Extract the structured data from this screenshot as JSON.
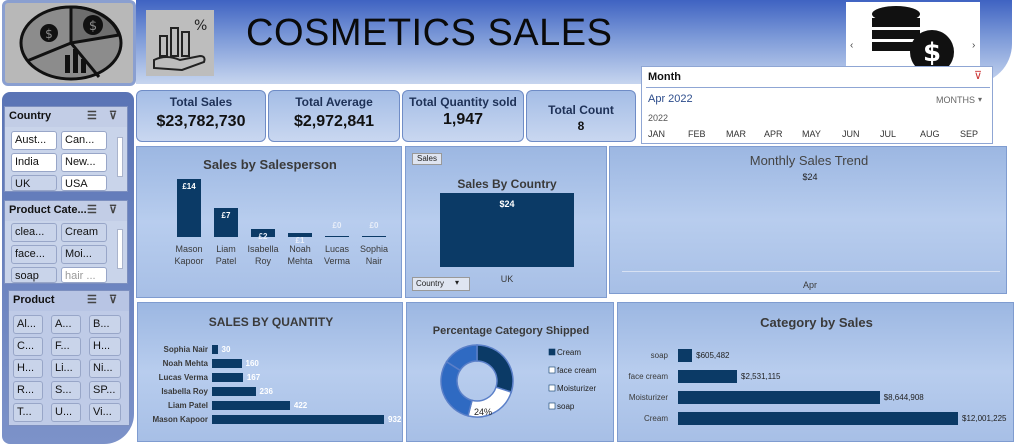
{
  "header": {
    "title": "COSMETICS SALES"
  },
  "colors": {
    "bar": "#0b3a66",
    "banner": "#3f63c2",
    "panel": "#a7bfe6"
  },
  "slicers": {
    "country": {
      "title": "Country",
      "items": [
        "Aust...",
        "Can...",
        "India",
        "New...",
        "UK",
        "USA"
      ],
      "selected": [
        "UK"
      ]
    },
    "product_category": {
      "title": "Product Cate...",
      "items": [
        "clea...",
        "Cream",
        "face...",
        "Moi...",
        "soap",
        "hair ..."
      ]
    },
    "product": {
      "title": "Product",
      "items": [
        "Al...",
        "A...",
        "B...",
        "C...",
        "F...",
        "H...",
        "H...",
        "Li...",
        "Ni...",
        "R...",
        "S...",
        "SP...",
        "T...",
        "U...",
        "Vi..."
      ]
    }
  },
  "kpis": {
    "total_sales": {
      "label": "Total Sales",
      "value": "$23,782,730"
    },
    "total_average": {
      "label": "Total Average",
      "value": "$2,972,841"
    },
    "total_quantity": {
      "label": "Total Quantity sold",
      "value": "1,947"
    },
    "total_count": {
      "label": "Total Count",
      "value": "8"
    }
  },
  "month_filter": {
    "title": "Month",
    "selected": "Apr 2022",
    "unit": "MONTHS",
    "year": "2022",
    "months": [
      "JAN",
      "FEB",
      "MAR",
      "APR",
      "MAY",
      "JUN",
      "JUL",
      "AUG",
      "SEP"
    ]
  },
  "chart_data": [
    {
      "type": "bar",
      "title": "Sales by Salesperson",
      "categories": [
        "Mason Kapoor",
        "Liam Patel",
        "Isabella Roy",
        "Noah Mehta",
        "Lucas Verma",
        "Sophia Nair"
      ],
      "values": [
        14,
        7,
        2,
        1,
        0,
        0
      ],
      "labels": [
        "£14",
        "£7",
        "£2",
        "£1",
        "£0",
        "£0"
      ]
    },
    {
      "type": "bar",
      "title": "Sales By Country",
      "button": "Sales",
      "filter": "Country",
      "categories": [
        "UK"
      ],
      "values": [
        24
      ],
      "labels": [
        "$24"
      ]
    },
    {
      "type": "line",
      "title": "Monthly Sales Trend",
      "categories": [
        "Apr"
      ],
      "values": [
        24
      ],
      "labels": [
        "$24"
      ]
    },
    {
      "type": "bar",
      "orientation": "horizontal",
      "title": "SALES BY QUANTITY",
      "categories": [
        "Sophia Nair",
        "Noah Mehta",
        "Lucas Verma",
        "Isabella Roy",
        "Liam Patel",
        "Mason Kapoor"
      ],
      "values": [
        30,
        160,
        167,
        236,
        422,
        932
      ]
    },
    {
      "type": "pie",
      "title": "Percentage Category Shipped",
      "categories": [
        "Cream",
        "face cream",
        "Moisturizer",
        "soap"
      ],
      "colors": [
        "#0b3a66",
        "#ffffff",
        "#2f6ac2",
        "#2f6ac2"
      ],
      "values": [
        30,
        24,
        30,
        16
      ],
      "labels": [
        "24%"
      ]
    },
    {
      "type": "bar",
      "orientation": "horizontal",
      "title": "Category by Sales",
      "categories": [
        "soap",
        "face cream",
        "Moisturizer",
        "Cream"
      ],
      "values": [
        605482,
        2531115,
        8644908,
        12001225
      ],
      "labels": [
        "$605,482",
        "$2,531,115",
        "$8,644,908",
        "$12,001,225"
      ]
    }
  ]
}
